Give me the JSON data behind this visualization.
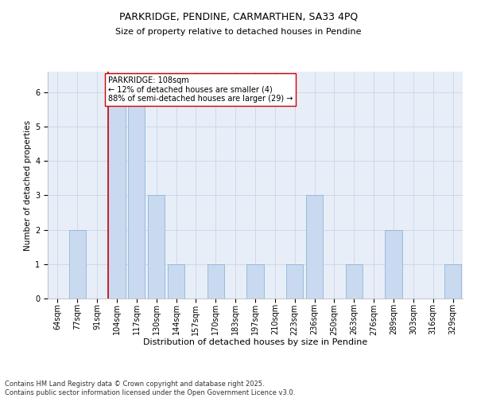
{
  "title_line1": "PARKRIDGE, PENDINE, CARMARTHEN, SA33 4PQ",
  "title_line2": "Size of property relative to detached houses in Pendine",
  "xlabel": "Distribution of detached houses by size in Pendine",
  "ylabel": "Number of detached properties",
  "categories": [
    "64sqm",
    "77sqm",
    "91sqm",
    "104sqm",
    "117sqm",
    "130sqm",
    "144sqm",
    "157sqm",
    "170sqm",
    "183sqm",
    "197sqm",
    "210sqm",
    "223sqm",
    "236sqm",
    "250sqm",
    "263sqm",
    "276sqm",
    "289sqm",
    "303sqm",
    "316sqm",
    "329sqm"
  ],
  "values": [
    0,
    2,
    0,
    6,
    6,
    3,
    1,
    0,
    1,
    0,
    1,
    0,
    1,
    3,
    0,
    1,
    0,
    2,
    0,
    0,
    1
  ],
  "bar_color": "#c9d9f0",
  "bar_edge_color": "#7bafd4",
  "highlight_index": 3,
  "highlight_line_color": "#cc0000",
  "annotation_text": "PARKRIDGE: 108sqm\n← 12% of detached houses are smaller (4)\n88% of semi-detached houses are larger (29) →",
  "annotation_box_color": "#ffffff",
  "annotation_box_edge": "#cc0000",
  "ylim": [
    0,
    6.6
  ],
  "yticks": [
    0,
    1,
    2,
    3,
    4,
    5,
    6
  ],
  "grid_color": "#d0d8e8",
  "background_color": "#e8eef8",
  "plot_bg_color": "#dce6f5",
  "footnote": "Contains HM Land Registry data © Crown copyright and database right 2025.\nContains public sector information licensed under the Open Government Licence v3.0.",
  "title_fontsize": 9,
  "subtitle_fontsize": 8,
  "xlabel_fontsize": 8,
  "ylabel_fontsize": 7.5,
  "tick_fontsize": 7,
  "annotation_fontsize": 7,
  "footnote_fontsize": 6
}
